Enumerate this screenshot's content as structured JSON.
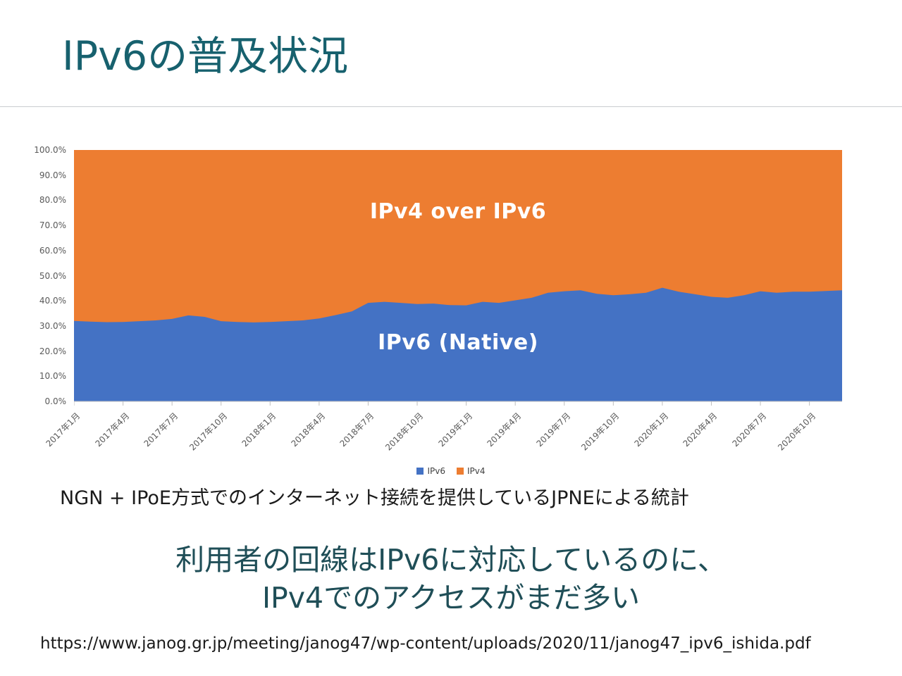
{
  "slide": {
    "title": "IPv6の普及状況",
    "caption": "NGN + IPoE方式でのインターネット接続を提供しているJPNEによる統計",
    "message_line1": "利用者の回線はIPv6に対応しているのに、",
    "message_line2": "IPv4でのアクセスがまだ多い",
    "source_url": "https://www.janog.gr.jp/meeting/janog47/wp-content/uploads/2020/11/janog47_ipv6_ishida.pdf",
    "accent_color": "#17616e",
    "message_color": "#1f4e57"
  },
  "chart_data": {
    "type": "area",
    "stacked": true,
    "unit": "%",
    "ylim": [
      0,
      100
    ],
    "grid": false,
    "legend_position": "bottom",
    "y_tick_labels": [
      "100.0%",
      "90.0%",
      "80.0%",
      "70.0%",
      "60.0%",
      "50.0%",
      "40.0%",
      "30.0%",
      "20.0%",
      "10.0%",
      "0.0%"
    ],
    "x_tick_labels": [
      "2017年1月",
      "2017年4月",
      "2017年7月",
      "2017年10月",
      "2018年1月",
      "2018年4月",
      "2018年7月",
      "2018年10月",
      "2019年1月",
      "2019年4月",
      "2019年7月",
      "2019年10月",
      "2020年1月",
      "2020年4月",
      "2020年7月",
      "2020年10月"
    ],
    "x_tick_interval_months": 3,
    "x": [
      "2017年1月",
      "2017年2月",
      "2017年3月",
      "2017年4月",
      "2017年5月",
      "2017年6月",
      "2017年7月",
      "2017年8月",
      "2017年9月",
      "2017年10月",
      "2017年11月",
      "2017年12月",
      "2018年1月",
      "2018年2月",
      "2018年3月",
      "2018年4月",
      "2018年5月",
      "2018年6月",
      "2018年7月",
      "2018年8月",
      "2018年9月",
      "2018年10月",
      "2018年11月",
      "2018年12月",
      "2019年1月",
      "2019年2月",
      "2019年3月",
      "2019年4月",
      "2019年5月",
      "2019年6月",
      "2019年7月",
      "2019年8月",
      "2019年9月",
      "2019年10月",
      "2019年11月",
      "2019年12月",
      "2020年1月",
      "2020年2月",
      "2020年3月",
      "2020年4月",
      "2020年5月",
      "2020年6月",
      "2020年7月",
      "2020年8月",
      "2020年9月",
      "2020年10月",
      "2020年11月",
      "2020年12月"
    ],
    "series": [
      {
        "name": "IPv6",
        "color": "#4472C4",
        "values": [
          32.0,
          31.7,
          31.5,
          31.6,
          31.9,
          32.2,
          32.8,
          34.2,
          33.6,
          31.9,
          31.6,
          31.4,
          31.6,
          31.9,
          32.2,
          33.0,
          34.3,
          35.8,
          39.2,
          39.6,
          39.2,
          38.7,
          38.9,
          38.3,
          38.2,
          39.6,
          39.2,
          40.2,
          41.2,
          43.2,
          43.8,
          44.2,
          42.8,
          42.2,
          42.6,
          43.2,
          45.2,
          43.6,
          42.6,
          41.6,
          41.2,
          42.2,
          43.8,
          43.2,
          43.6,
          43.6,
          43.9,
          44.2
        ]
      },
      {
        "name": "IPv4",
        "color": "#ED7D31",
        "values": [
          68.0,
          68.3,
          68.5,
          68.4,
          68.1,
          67.8,
          67.2,
          65.8,
          66.4,
          68.1,
          68.4,
          68.6,
          68.4,
          68.1,
          67.8,
          67.0,
          65.7,
          64.2,
          60.8,
          60.4,
          60.8,
          61.3,
          61.1,
          61.7,
          61.8,
          60.4,
          60.8,
          59.8,
          58.8,
          56.8,
          56.2,
          55.8,
          57.2,
          57.8,
          57.4,
          56.8,
          54.8,
          56.4,
          57.4,
          58.4,
          58.8,
          57.8,
          56.2,
          56.8,
          56.4,
          56.4,
          56.1,
          55.8
        ]
      }
    ],
    "area_labels": {
      "ipv4": "IPv4 over IPv6",
      "ipv6": "IPv6 (Native)"
    },
    "legend": [
      {
        "label": "IPv6",
        "color": "#4472C4"
      },
      {
        "label": "IPv4",
        "color": "#ED7D31"
      }
    ]
  }
}
